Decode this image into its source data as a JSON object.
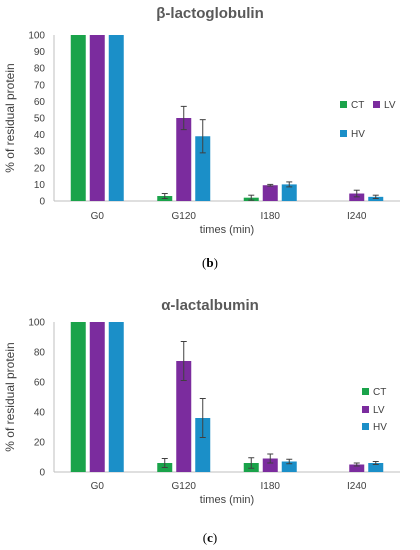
{
  "chart_data": [
    {
      "type": "bar",
      "title": "β-lactoglobulin",
      "xlabel": "times (min)",
      "ylabel": "% of residual protein",
      "ylim": [
        0,
        100
      ],
      "yticks": [
        0,
        10,
        20,
        30,
        40,
        50,
        60,
        70,
        80,
        90,
        100
      ],
      "categories": [
        "G0",
        "G120",
        "I180",
        "I240"
      ],
      "series": [
        {
          "name": "CT",
          "values": [
            100,
            3,
            2,
            0
          ],
          "errors": [
            0,
            1.5,
            1.5,
            0
          ]
        },
        {
          "name": "LV",
          "values": [
            100,
            50,
            9.5,
            4.5
          ],
          "errors": [
            0,
            7,
            0.5,
            2
          ]
        },
        {
          "name": "HV",
          "values": [
            100,
            39,
            10,
            2.5
          ],
          "errors": [
            0,
            10,
            1.5,
            1
          ]
        }
      ],
      "grid": false,
      "legend": "right",
      "colors": {
        "CT": "#1aa34a",
        "LV": "#7b2c9e",
        "HV": "#1b8fc8"
      }
    },
    {
      "type": "bar",
      "title": "α-lactalbumin",
      "xlabel": "times (min)",
      "ylabel": "% of residual protein",
      "ylim": [
        0,
        100
      ],
      "yticks": [
        0,
        20,
        40,
        60,
        80,
        100
      ],
      "categories": [
        "G0",
        "G120",
        "I180",
        "I240"
      ],
      "series": [
        {
          "name": "CT",
          "values": [
            100,
            6,
            6,
            0
          ],
          "errors": [
            0,
            3,
            3.5,
            0
          ]
        },
        {
          "name": "LV",
          "values": [
            100,
            74,
            9,
            5
          ],
          "errors": [
            0,
            13,
            3,
            1
          ]
        },
        {
          "name": "HV",
          "values": [
            100,
            36,
            7,
            6
          ],
          "errors": [
            0,
            13,
            1.5,
            1
          ]
        }
      ],
      "grid": false,
      "legend": "right",
      "colors": {
        "CT": "#1aa34a",
        "LV": "#7b2c9e",
        "HV": "#1b8fc8"
      }
    }
  ],
  "panel_labels": [
    {
      "open": "(",
      "letter": "b",
      "close": ")"
    },
    {
      "open": "(",
      "letter": "c",
      "close": ")"
    }
  ]
}
